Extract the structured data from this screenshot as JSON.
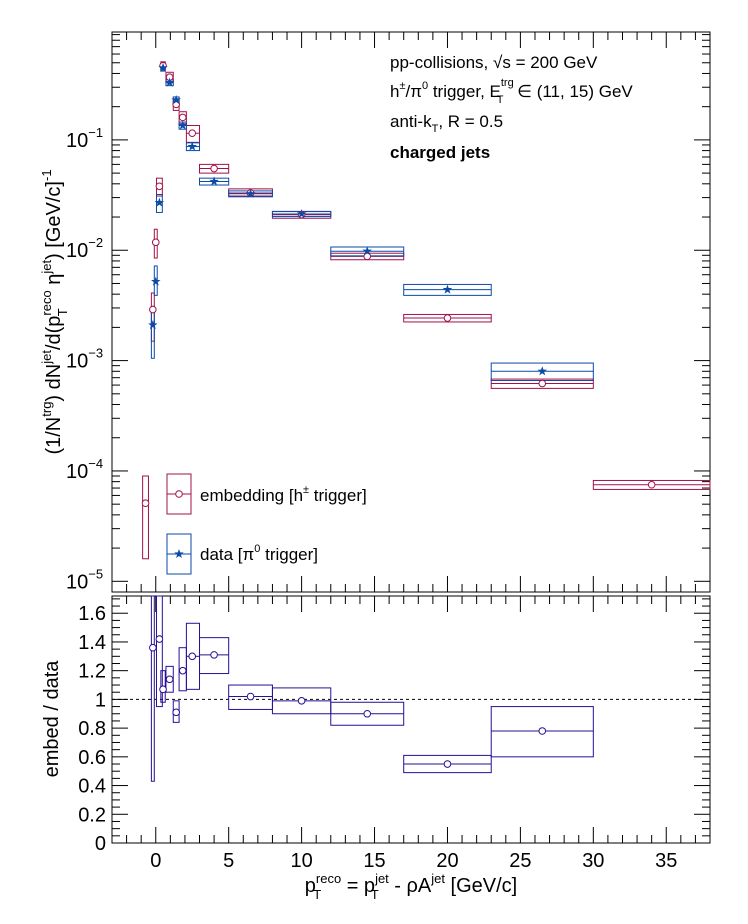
{
  "chart_data": [
    {
      "type": "scatter",
      "panel": "top",
      "xlim": [
        -3,
        38
      ],
      "ylim": [
        8e-06,
        0.95
      ],
      "log_y": true,
      "ylabel": "(1/N^trg) dN^jet/d(p_T^reco η^jet) [GeV/c]^-1",
      "yticks": [
        {
          "v": 1e-05,
          "m": "10",
          "e": "−5"
        },
        {
          "v": 0.0001,
          "m": "10",
          "e": "−4"
        },
        {
          "v": 0.001,
          "m": "10",
          "e": "−3"
        },
        {
          "v": 0.01,
          "m": "10",
          "e": "−2"
        },
        {
          "v": 0.1,
          "m": "10",
          "e": "−1"
        }
      ],
      "annotations": {
        "line1": "pp-collisions,",
        "line1_sqrt": "√s",
        "line1_rest": "= 200 GeV",
        "line2_a": "h",
        "line2_pm": "±",
        "line2_b": "/π",
        "line2_0": "0",
        "line2_c": " trigger, E",
        "line2_sup": "trg",
        "line2_sub": "T",
        "line2_d": " ∈ (11, 15) GeV",
        "line3_a": "anti-k",
        "line3_sub": "T",
        "line3_b": ", R = 0.5",
        "line4": "charged jets"
      },
      "legend": {
        "placement": "bottom-left",
        "embedding": {
          "a": "embedding [h",
          "sup": "±",
          "b": " trigger]"
        },
        "data": {
          "a": "data [π",
          "sup": "0",
          "b": " trigger]"
        }
      },
      "series": [
        {
          "name": "embedding [h± trigger]",
          "color": "#a3104a",
          "marker": "open-circle",
          "points": [
            {
              "x": -0.7,
              "y": 5.1e-05,
              "x0": -0.9,
              "x1": -0.5,
              "y0": 1.6e-05,
              "y1": 9e-05
            },
            {
              "x": -0.2,
              "y": 0.0029,
              "x0": -0.3,
              "x1": -0.1,
              "y0": 0.0015,
              "y1": 0.0041
            },
            {
              "x": 0.0,
              "y": 0.0118,
              "x0": -0.1,
              "x1": 0.1,
              "y0": 0.0085,
              "y1": 0.0155
            },
            {
              "x": 0.25,
              "y": 0.038,
              "x0": 0.05,
              "x1": 0.45,
              "y0": 0.031,
              "y1": 0.045
            },
            {
              "x": 0.5,
              "y": 0.47,
              "x0": 0.35,
              "x1": 0.65,
              "y0": 0.43,
              "y1": 0.51
            },
            {
              "x": 0.95,
              "y": 0.37,
              "x0": 0.7,
              "x1": 1.2,
              "y0": 0.33,
              "y1": 0.41
            },
            {
              "x": 1.4,
              "y": 0.21,
              "x0": 1.2,
              "x1": 1.6,
              "y0": 0.185,
              "y1": 0.235
            },
            {
              "x": 1.85,
              "y": 0.16,
              "x0": 1.6,
              "x1": 2.1,
              "y0": 0.14,
              "y1": 0.18
            },
            {
              "x": 2.5,
              "y": 0.115,
              "x0": 2.1,
              "x1": 3.0,
              "y0": 0.095,
              "y1": 0.135
            },
            {
              "x": 4.0,
              "y": 0.055,
              "x0": 3.0,
              "x1": 5.0,
              "y0": 0.05,
              "y1": 0.06
            },
            {
              "x": 6.5,
              "y": 0.033,
              "x0": 5.0,
              "x1": 8.0,
              "y0": 0.031,
              "y1": 0.036
            },
            {
              "x": 10.0,
              "y": 0.021,
              "x0": 8.0,
              "x1": 12.0,
              "y0": 0.0195,
              "y1": 0.0225
            },
            {
              "x": 14.5,
              "y": 0.0088,
              "x0": 12.0,
              "x1": 17.0,
              "y0": 0.0082,
              "y1": 0.0094
            },
            {
              "x": 20.0,
              "y": 0.00243,
              "x0": 17.0,
              "x1": 23.0,
              "y0": 0.00224,
              "y1": 0.00262
            },
            {
              "x": 26.5,
              "y": 0.00062,
              "x0": 23.0,
              "x1": 30.0,
              "y0": 0.00056,
              "y1": 0.00068
            },
            {
              "x": 34.0,
              "y": 7.5e-05,
              "x0": 30.0,
              "x1": 38.0,
              "y0": 6.8e-05,
              "y1": 8.2e-05
            }
          ]
        },
        {
          "name": "data [π0 trigger]",
          "color": "#0a4ba8",
          "marker": "star",
          "points": [
            {
              "x": -0.2,
              "y": 0.0021,
              "x0": -0.3,
              "x1": -0.1,
              "y0": 0.00105,
              "y1": 0.0031
            },
            {
              "x": 0.0,
              "y": 0.0052,
              "x0": -0.1,
              "x1": 0.1,
              "y0": 0.0039,
              "y1": 0.0072
            },
            {
              "x": 0.25,
              "y": 0.027,
              "x0": 0.05,
              "x1": 0.45,
              "y0": 0.022,
              "y1": 0.032
            },
            {
              "x": 0.5,
              "y": 0.45,
              "x0": 0.35,
              "x1": 0.65,
              "y0": 0.42,
              "y1": 0.48
            },
            {
              "x": 0.95,
              "y": 0.33,
              "x0": 0.7,
              "x1": 1.2,
              "y0": 0.31,
              "y1": 0.35
            },
            {
              "x": 1.4,
              "y": 0.23,
              "x0": 1.2,
              "x1": 1.6,
              "y0": 0.215,
              "y1": 0.245
            },
            {
              "x": 1.85,
              "y": 0.135,
              "x0": 1.6,
              "x1": 2.1,
              "y0": 0.125,
              "y1": 0.145
            },
            {
              "x": 2.5,
              "y": 0.087,
              "x0": 2.1,
              "x1": 3.0,
              "y0": 0.08,
              "y1": 0.094
            },
            {
              "x": 4.0,
              "y": 0.042,
              "x0": 3.0,
              "x1": 5.0,
              "y0": 0.039,
              "y1": 0.045
            },
            {
              "x": 6.5,
              "y": 0.0325,
              "x0": 5.0,
              "x1": 8.0,
              "y0": 0.0305,
              "y1": 0.0345
            },
            {
              "x": 10.0,
              "y": 0.0213,
              "x0": 8.0,
              "x1": 12.0,
              "y0": 0.0202,
              "y1": 0.0224
            },
            {
              "x": 14.5,
              "y": 0.0098,
              "x0": 12.0,
              "x1": 17.0,
              "y0": 0.0089,
              "y1": 0.0107
            },
            {
              "x": 20.0,
              "y": 0.0044,
              "x0": 17.0,
              "x1": 23.0,
              "y0": 0.0039,
              "y1": 0.0049
            },
            {
              "x": 26.5,
              "y": 0.0008,
              "x0": 23.0,
              "x1": 30.0,
              "y0": 0.00066,
              "y1": 0.00095
            }
          ]
        }
      ]
    },
    {
      "type": "scatter",
      "panel": "bottom",
      "xlim": [
        -3,
        38
      ],
      "ylim": [
        0,
        1.72
      ],
      "ylabel": "embed / data",
      "xlabel": {
        "a": "p",
        "sup1": "reco",
        "sub1": "T",
        "b": " = p",
        "sup2": "jet",
        "sub2": "T",
        "c": " - ρA",
        "sup3": "jet",
        "d": " [GeV/c]"
      },
      "xticks": [
        "0",
        "5",
        "10",
        "15",
        "20",
        "25",
        "30",
        "35"
      ],
      "yticks": [
        "0",
        "0.2",
        "0.4",
        "0.6",
        "0.8",
        "1",
        "1.2",
        "1.4",
        "1.6"
      ],
      "reference_line": 1.0,
      "series": [
        {
          "name": "embed / data",
          "color": "#2a0f96",
          "marker": "open-circle",
          "points": [
            {
              "x": -0.2,
              "y": 1.36,
              "x0": -0.3,
              "x1": -0.1,
              "y0": 0.43,
              "y1": 1.72
            },
            {
              "x": 0.25,
              "y": 1.42,
              "x0": 0.05,
              "x1": 0.45,
              "y0": 0.95,
              "y1": 1.72
            },
            {
              "x": 0.5,
              "y": 1.07,
              "x0": 0.35,
              "x1": 0.65,
              "y0": 0.98,
              "y1": 1.2
            },
            {
              "x": 0.95,
              "y": 1.14,
              "x0": 0.7,
              "x1": 1.2,
              "y0": 1.05,
              "y1": 1.23
            },
            {
              "x": 1.4,
              "y": 0.91,
              "x0": 1.2,
              "x1": 1.6,
              "y0": 0.84,
              "y1": 0.99
            },
            {
              "x": 1.85,
              "y": 1.2,
              "x0": 1.6,
              "x1": 2.1,
              "y0": 1.06,
              "y1": 1.36
            },
            {
              "x": 2.5,
              "y": 1.3,
              "x0": 2.1,
              "x1": 3.0,
              "y0": 1.07,
              "y1": 1.53
            },
            {
              "x": 4.0,
              "y": 1.31,
              "x0": 3.0,
              "x1": 5.0,
              "y0": 1.18,
              "y1": 1.43
            },
            {
              "x": 6.5,
              "y": 1.02,
              "x0": 5.0,
              "x1": 8.0,
              "y0": 0.93,
              "y1": 1.1
            },
            {
              "x": 10.0,
              "y": 0.99,
              "x0": 8.0,
              "x1": 12.0,
              "y0": 0.9,
              "y1": 1.08
            },
            {
              "x": 14.5,
              "y": 0.9,
              "x0": 12.0,
              "x1": 17.0,
              "y0": 0.82,
              "y1": 0.98
            },
            {
              "x": 20.0,
              "y": 0.55,
              "x0": 17.0,
              "x1": 23.0,
              "y0": 0.49,
              "y1": 0.61
            },
            {
              "x": 26.5,
              "y": 0.78,
              "x0": 23.0,
              "x1": 30.0,
              "y0": 0.6,
              "y1": 0.95
            }
          ]
        }
      ]
    }
  ]
}
